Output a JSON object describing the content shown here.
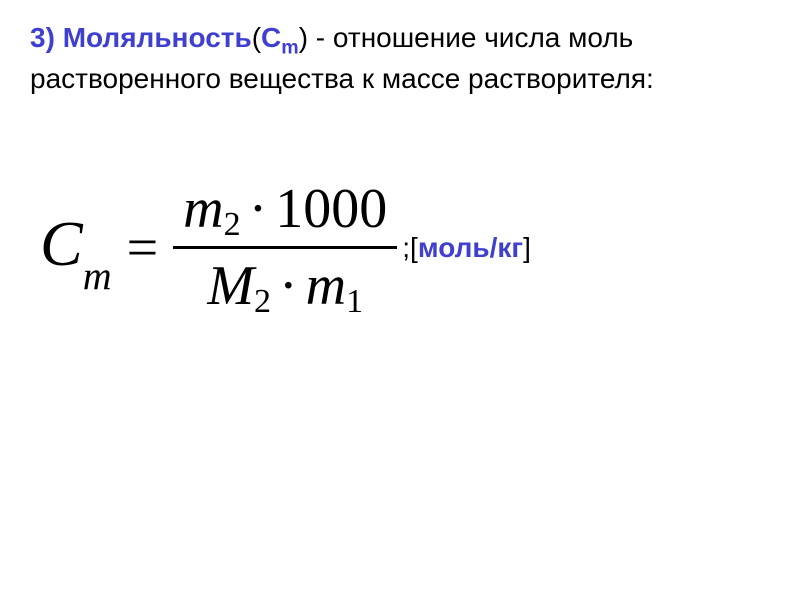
{
  "definition": {
    "item_number": "3)",
    "term": "Моляльность",
    "symbol_open": "(",
    "symbol_letter": "С",
    "symbol_sub": "m",
    "symbol_close": ")",
    "dash": " - ",
    "text_part1": "отношение числа моль растворенного    вещества к массе растворителя:"
  },
  "formula": {
    "lhs_var": "С",
    "lhs_sub": "m",
    "equals": "=",
    "numerator": {
      "var1": "m",
      "sub1": "2",
      "dot": "·",
      "const": "1000"
    },
    "denominator": {
      "var1": "M",
      "sub1": "2",
      "dot": "·",
      "var2": "m",
      "sub2": "1"
    },
    "unit_prefix": ";[",
    "unit_text": "моль/кг",
    "unit_suffix": "]"
  },
  "styling": {
    "highlight_color": "#4040d0",
    "text_color": "#000000",
    "background_color": "#ffffff",
    "body_fontsize": 28,
    "formula_fontsize": 56
  }
}
